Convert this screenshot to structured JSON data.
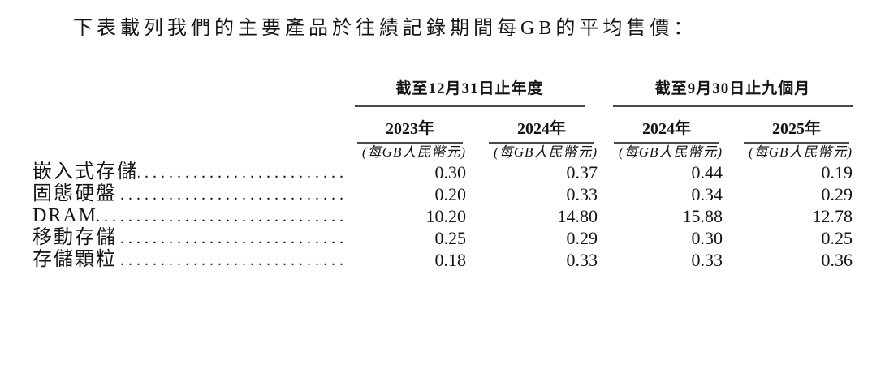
{
  "intro_text": "下表載列我們的主要產品於往績記錄期間每GB的平均售價：",
  "table": {
    "col_groups": [
      {
        "label": "截至12月31日止年度",
        "years": [
          "2023年",
          "2024年"
        ]
      },
      {
        "label": "截至9月30日止九個月",
        "years": [
          "2024年",
          "2025年"
        ]
      }
    ],
    "unit_label": "(每GB人民幣元)",
    "rows": [
      {
        "label": "嵌入式存儲",
        "values": [
          "0.30",
          "0.37",
          "0.44",
          "0.19"
        ]
      },
      {
        "label": "固態硬盤",
        "values": [
          "0.20",
          "0.33",
          "0.34",
          "0.29"
        ]
      },
      {
        "label": "DRAM",
        "values": [
          "10.20",
          "14.80",
          "15.88",
          "12.78"
        ]
      },
      {
        "label": "移動存儲",
        "values": [
          "0.25",
          "0.29",
          "0.30",
          "0.25"
        ]
      },
      {
        "label": "存儲顆粒",
        "values": [
          "0.18",
          "0.33",
          "0.33",
          "0.36"
        ]
      }
    ]
  },
  "colors": {
    "rule": "#4a4a4a",
    "text": "#151515",
    "background": "#ffffff"
  }
}
